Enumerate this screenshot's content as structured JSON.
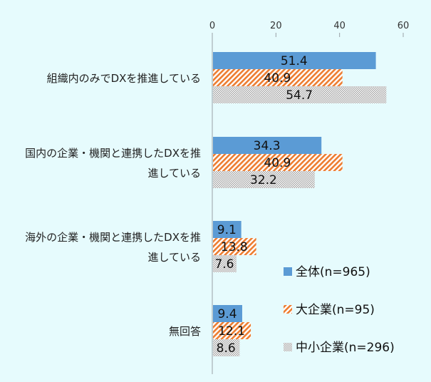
{
  "chart_data": {
    "type": "bar",
    "orientation": "horizontal",
    "xlim": [
      0,
      60
    ],
    "ticks": [
      "0",
      "20",
      "40",
      "60"
    ],
    "grid": false,
    "legend_position": "bottom-right",
    "categories": [
      [
        "組織内のみでDXを推進している"
      ],
      [
        "国内の企業・機関と連携したDXを推",
        "進している"
      ],
      [
        "海外の企業・機関と連携したDXを推",
        "進している"
      ],
      [
        "無回答"
      ]
    ],
    "series": [
      {
        "name": "全体(n=965)",
        "values": [
          51.4,
          34.3,
          9.1,
          9.4
        ],
        "labels": [
          "51.4",
          "34.3",
          "9.1",
          "9.4"
        ],
        "color": "#5b9bd5",
        "pattern": "solid"
      },
      {
        "name": "大企業(n=95)",
        "values": [
          40.9,
          40.9,
          13.8,
          12.1
        ],
        "labels": [
          "40.9",
          "40.9",
          "13.8",
          "12.1"
        ],
        "color": "#ed7d31",
        "pattern": "diagonal"
      },
      {
        "name": "中小企業(n=296)",
        "values": [
          54.7,
          32.2,
          7.6,
          8.6
        ],
        "labels": [
          "54.7",
          "32.2",
          "7.6",
          "8.6"
        ],
        "color": "#a5a5a5",
        "pattern": "dots"
      }
    ]
  }
}
